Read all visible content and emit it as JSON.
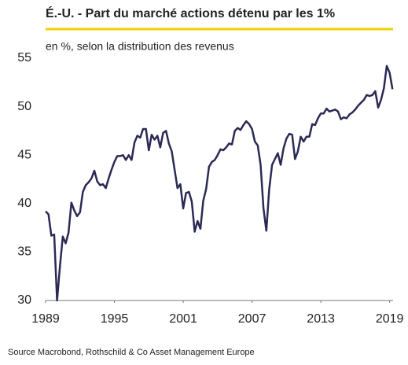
{
  "chart_data": {
    "type": "line",
    "title": "É.-U. - Part du marché actions détenu par les 1%",
    "subtitle": "en %, selon la distribution des revenus",
    "source": "Source Macrobond, Rothschild & Co Asset Management Europe",
    "color": "#2b2a55",
    "x": [
      1989,
      1989.25,
      1989.5,
      1989.75,
      1990,
      1990.25,
      1990.5,
      1990.75,
      1991,
      1991.25,
      1991.5,
      1991.75,
      1992,
      1992.25,
      1992.5,
      1992.75,
      1993,
      1993.25,
      1993.5,
      1993.75,
      1994,
      1994.25,
      1994.5,
      1994.75,
      1995,
      1995.25,
      1995.5,
      1995.75,
      1996,
      1996.25,
      1996.5,
      1996.75,
      1997,
      1997.25,
      1997.5,
      1997.75,
      1998,
      1998.25,
      1998.5,
      1998.75,
      1999,
      1999.25,
      1999.5,
      1999.75,
      2000,
      2000.25,
      2000.5,
      2000.75,
      2001,
      2001.25,
      2001.5,
      2001.75,
      2002,
      2002.25,
      2002.5,
      2002.75,
      2003,
      2003.25,
      2003.5,
      2003.75,
      2004,
      2004.25,
      2004.5,
      2004.75,
      2005,
      2005.25,
      2005.5,
      2005.75,
      2006,
      2006.25,
      2006.5,
      2006.75,
      2007,
      2007.25,
      2007.5,
      2007.75,
      2008,
      2008.25,
      2008.5,
      2008.75,
      2009,
      2009.25,
      2009.5,
      2009.75,
      2010,
      2010.25,
      2010.5,
      2010.75,
      2011,
      2011.25,
      2011.5,
      2011.75,
      2012,
      2012.25,
      2012.5,
      2012.75,
      2013,
      2013.25,
      2013.5,
      2013.75,
      2014,
      2014.25,
      2014.5,
      2014.75,
      2015,
      2015.25,
      2015.5,
      2015.75,
      2016,
      2016.25,
      2016.5,
      2016.75,
      2017,
      2017.25,
      2017.5,
      2017.75,
      2018,
      2018.25,
      2018.5,
      2018.75,
      2019,
      2019.25
    ],
    "values": [
      39.2,
      38.9,
      36.7,
      36.8,
      30,
      33.5,
      36.6,
      35.9,
      37,
      40.1,
      39.3,
      38.7,
      39.1,
      41.2,
      41.9,
      42.2,
      42.6,
      43.4,
      42.3,
      41.9,
      42,
      41.6,
      42.6,
      43.5,
      44.3,
      44.9,
      44.9,
      45,
      44.5,
      45,
      44.5,
      46.3,
      47,
      46.8,
      47.7,
      47.7,
      45.5,
      47.1,
      46.6,
      47,
      45.8,
      47.3,
      47.5,
      46.2,
      45.4,
      43.5,
      41.6,
      42,
      39.5,
      41.1,
      41.2,
      40.2,
      37.1,
      38.2,
      37.4,
      40.3,
      41.5,
      43.8,
      44.3,
      44.5,
      45,
      45.6,
      45.5,
      45.8,
      46.2,
      46.1,
      47.5,
      47.8,
      47.6,
      48.1,
      48.5,
      48.2,
      47.7,
      46.4,
      46,
      44,
      39.5,
      37.2,
      41.5,
      44,
      44.6,
      45.2,
      44,
      45.7,
      46.7,
      47.2,
      47.1,
      44.6,
      45.4,
      46.9,
      46.4,
      46.9,
      46.9,
      48.2,
      48.1,
      48.8,
      49.3,
      49.3,
      49.8,
      49.5,
      49.6,
      49.7,
      49.5,
      48.7,
      48.9,
      48.8,
      49.2,
      49.4,
      49.7,
      50.1,
      50.4,
      50.7,
      51.2,
      51.1,
      51.2,
      51.6,
      49.9,
      50.7,
      51.9,
      54.2,
      53.5,
      51.8
    ],
    "xlim": [
      1989,
      2019.3
    ],
    "xticks": [
      1989,
      1995,
      2001,
      2007,
      2013,
      2019
    ],
    "ylim": [
      30,
      55
    ],
    "yticks": [
      30,
      35,
      40,
      45,
      50,
      55
    ],
    "grid": false
  }
}
